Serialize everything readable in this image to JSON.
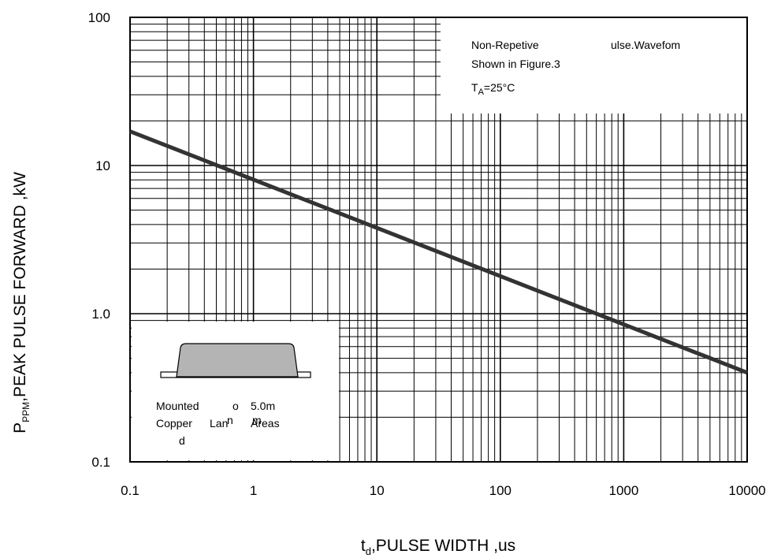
{
  "chart_data": {
    "type": "line",
    "x_scale": "log",
    "y_scale": "log",
    "xlim": [
      0.1,
      10000
    ],
    "ylim": [
      0.1,
      100
    ],
    "grid": true,
    "x_ticks": [
      "0.1",
      "1",
      "10",
      "100",
      "1000",
      "10000"
    ],
    "x_tick_values": [
      0.1,
      1,
      10,
      100,
      1000,
      10000
    ],
    "y_ticks": [
      "0.1",
      "1.0",
      "10",
      "100"
    ],
    "y_tick_values": [
      0.1,
      1,
      10,
      100
    ],
    "xlabel": {
      "main": "t",
      "sub": "d",
      "rest": ",PULSE WIDTH ,us"
    },
    "ylabel": {
      "main": "P",
      "sub": "PPM",
      "rest": ",PEAK PULSE  FORWARD ,kW"
    },
    "series": [
      {
        "x": [
          0.1,
          10000
        ],
        "y": [
          17,
          0.4
        ],
        "color": "#333333"
      }
    ],
    "annotations": {
      "top_right": [
        "Non-Repetive",
        "ulse.Wavefom",
        "Shown in Figure.3"
      ],
      "temp": {
        "main": "T",
        "sub": "A",
        "rest": "=25°C"
      },
      "bottom_left": [
        "Mounted",
        "o",
        "5.0m",
        "Copper",
        "Lan",
        "Areas",
        "n",
        "m",
        "d"
      ]
    }
  }
}
